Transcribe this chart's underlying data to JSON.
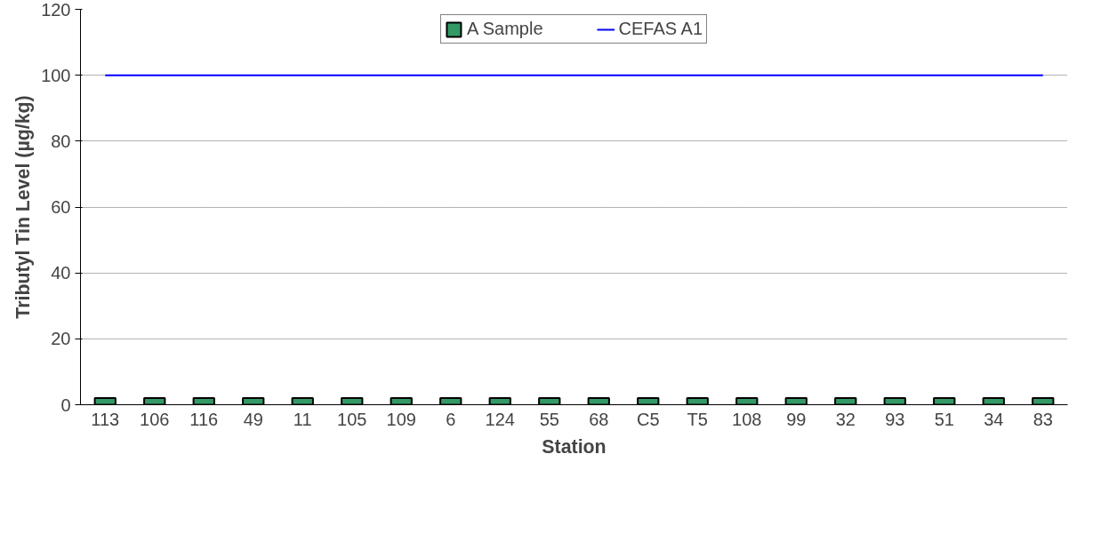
{
  "chart_data": {
    "type": "bar",
    "xlabel": "Station",
    "ylabel": "Tributyl Tin Level (µg/kg)",
    "categories": [
      "113",
      "106",
      "116",
      "49",
      "11",
      "105",
      "109",
      "6",
      "124",
      "55",
      "68",
      "C5",
      "T5",
      "108",
      "99",
      "32",
      "93",
      "51",
      "34",
      "83"
    ],
    "series": [
      {
        "name": "A Sample",
        "type": "bar",
        "color": "#339966",
        "values": [
          2,
          2,
          2,
          2,
          2,
          2,
          2,
          2,
          2,
          2,
          2,
          2,
          2,
          2,
          2,
          2,
          2,
          2,
          2,
          2
        ]
      },
      {
        "name": "CEFAS A1",
        "type": "line",
        "color": "#0000ff",
        "values": [
          100,
          100,
          100,
          100,
          100,
          100,
          100,
          100,
          100,
          100,
          100,
          100,
          100,
          100,
          100,
          100,
          100,
          100,
          100,
          100
        ]
      }
    ],
    "ylim": [
      0,
      120
    ],
    "yticks": [
      0,
      20,
      40,
      60,
      80,
      100,
      120
    ],
    "grid": "y",
    "legend": "top"
  }
}
